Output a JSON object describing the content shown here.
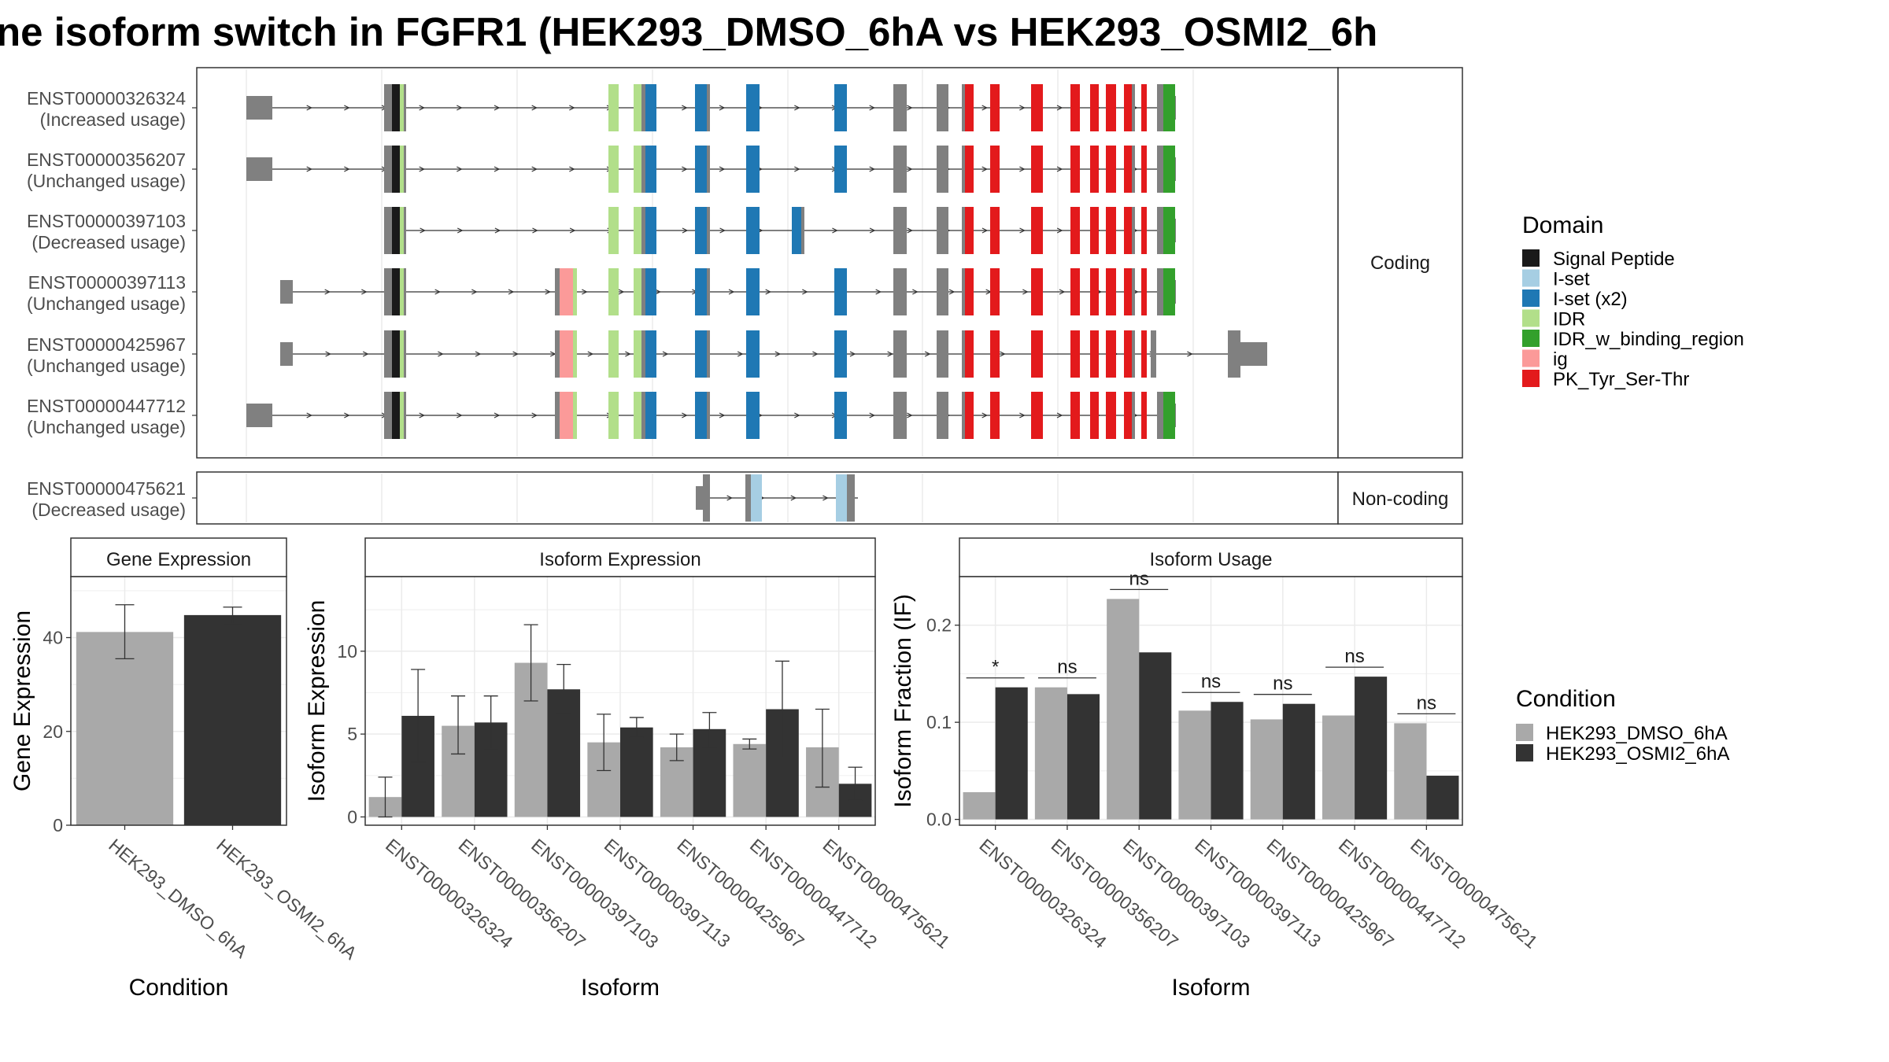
{
  "title": "ne isoform switch in FGFR1 (HEK293_DMSO_6hA vs HEK293_OSMI2_6h",
  "colors": {
    "utr": "#808080",
    "intron": "#333333",
    "Signal Peptide": "#1a1a1a",
    "I-set": "#a6cee3",
    "I-set (x2)": "#1f78b4",
    "IDR": "#b2df8a",
    "IDR_w_binding_region": "#33a02c",
    "ig": "#fb9a99",
    "PK_Tyr_Ser-Thr": "#e31a1c",
    "dmso": "#a9a9a9",
    "osmi": "#333333"
  },
  "structure": {
    "facets": [
      "Coding",
      "Non-coding"
    ],
    "legend_title": "Domain",
    "legend_items": [
      "Signal Peptide",
      "I-set",
      "I-set (x2)",
      "IDR",
      "IDR_w_binding_region",
      "ig",
      "PK_Tyr_Ser-Thr"
    ],
    "transcripts": [
      {
        "id": "ENST00000326324",
        "usage": "(Increased usage)",
        "group": "Coding",
        "start": "utr1",
        "end": 1000
      },
      {
        "id": "ENST00000356207",
        "usage": "(Unchanged usage)",
        "group": "Coding",
        "start": "utr1",
        "end": 1000
      },
      {
        "id": "ENST00000397103",
        "usage": "(Decreased usage)",
        "group": "Coding",
        "start": "none",
        "end": 990,
        "extra_iset": true
      },
      {
        "id": "ENST00000397113",
        "usage": "(Unchanged usage)",
        "group": "Coding",
        "start": "utr2",
        "end": 1000,
        "ig": true
      },
      {
        "id": "ENST00000425967",
        "usage": "(Unchanged usage)",
        "group": "Coding",
        "start": "utr2",
        "end": 1040,
        "ig": true,
        "alt_end": true
      },
      {
        "id": "ENST00000447712",
        "usage": "(Unchanged usage)",
        "group": "Coding",
        "start": "utr1",
        "end": 1055,
        "ig": true
      },
      {
        "id": "ENST00000475621",
        "usage": "(Decreased usage)",
        "group": "Non-coding"
      }
    ]
  },
  "chart_data": [
    {
      "type": "bar",
      "title": "Gene Expression",
      "xlabel": "Condition",
      "ylabel": "Gene Expression",
      "categories": [
        "HEK293_DMSO_6hA",
        "HEK293_OSMI2_6hA"
      ],
      "values": [
        41.2,
        44.8
      ],
      "error_low": [
        35.5,
        43.0
      ],
      "error_high": [
        47.0,
        46.5
      ],
      "ylim": [
        0,
        53
      ],
      "yticks": [
        0,
        20,
        40
      ]
    },
    {
      "type": "bar",
      "title": "Isoform Expression",
      "xlabel": "Isoform",
      "ylabel": "Isoform Expression",
      "categories": [
        "ENST00000326324",
        "ENST00000356207",
        "ENST00000397103",
        "ENST00000397113",
        "ENST00000425967",
        "ENST00000447712",
        "ENST00000475621"
      ],
      "series": [
        {
          "name": "HEK293_DMSO_6hA",
          "values": [
            1.2,
            5.5,
            9.3,
            4.5,
            4.2,
            4.4,
            4.2
          ],
          "error_low": [
            0.0,
            3.8,
            7.0,
            2.8,
            3.4,
            4.1,
            1.8
          ],
          "error_high": [
            2.4,
            7.3,
            11.6,
            6.2,
            5.0,
            4.7,
            6.5
          ]
        },
        {
          "name": "HEK293_OSMI2_6hA",
          "values": [
            6.1,
            5.7,
            7.7,
            5.4,
            5.3,
            6.5,
            2.0
          ],
          "error_low": [
            3.3,
            4.1,
            6.2,
            4.8,
            4.2,
            3.6,
            1.0
          ],
          "error_high": [
            8.9,
            7.3,
            9.2,
            6.0,
            6.3,
            9.4,
            3.0
          ]
        }
      ],
      "ylim": [
        -0.5,
        14.5
      ],
      "yticks": [
        0,
        5,
        10
      ]
    },
    {
      "type": "bar",
      "title": "Isoform Usage",
      "xlabel": "Isoform",
      "ylabel": "Isoform Fraction (IF)",
      "categories": [
        "ENST00000326324",
        "ENST00000356207",
        "ENST00000397103",
        "ENST00000397113",
        "ENST00000425967",
        "ENST00000447712",
        "ENST00000475621"
      ],
      "series": [
        {
          "name": "HEK293_DMSO_6hA",
          "values": [
            0.028,
            0.136,
            0.227,
            0.112,
            0.103,
            0.107,
            0.099
          ]
        },
        {
          "name": "HEK293_OSMI2_6hA",
          "values": [
            0.136,
            0.129,
            0.172,
            0.121,
            0.119,
            0.147,
            0.045
          ]
        }
      ],
      "significance": [
        "*",
        "ns",
        "ns",
        "ns",
        "ns",
        "ns",
        "ns"
      ],
      "ylim": [
        -0.006,
        0.25
      ],
      "yticks": [
        0.0,
        0.1,
        0.2
      ],
      "ytick_labels": [
        "0.0",
        "0.1",
        "0.2"
      ]
    }
  ],
  "condition_legend": {
    "title": "Condition",
    "items": [
      "HEK293_DMSO_6hA",
      "HEK293_OSMI2_6hA"
    ]
  }
}
